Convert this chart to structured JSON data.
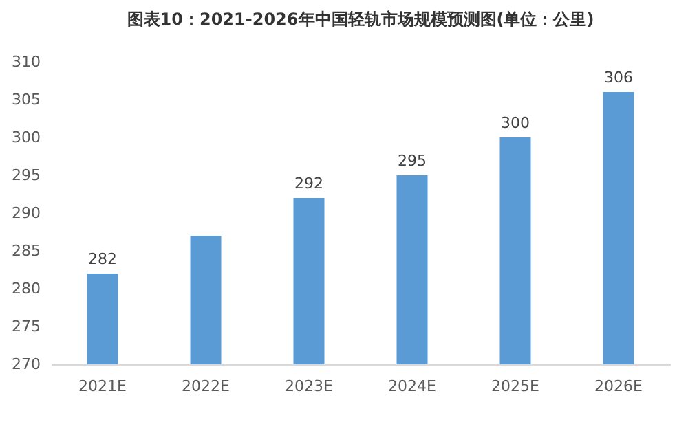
{
  "chart_data": {
    "type": "bar",
    "title": "图表10：2021-2026年中国轻轨市场规模预测图(单位：公里)",
    "categories": [
      "2021E",
      "2022E",
      "2023E",
      "2024E",
      "2025E",
      "2026E"
    ],
    "values": [
      282,
      287,
      292,
      295,
      300,
      306
    ],
    "value_labels": [
      "282",
      null,
      "292",
      "295",
      "300",
      "306"
    ],
    "color": "#5b9bd5",
    "ylim": [
      270,
      310
    ],
    "yticks": [
      270,
      275,
      280,
      285,
      290,
      295,
      300,
      305,
      310
    ],
    "grid": false
  }
}
